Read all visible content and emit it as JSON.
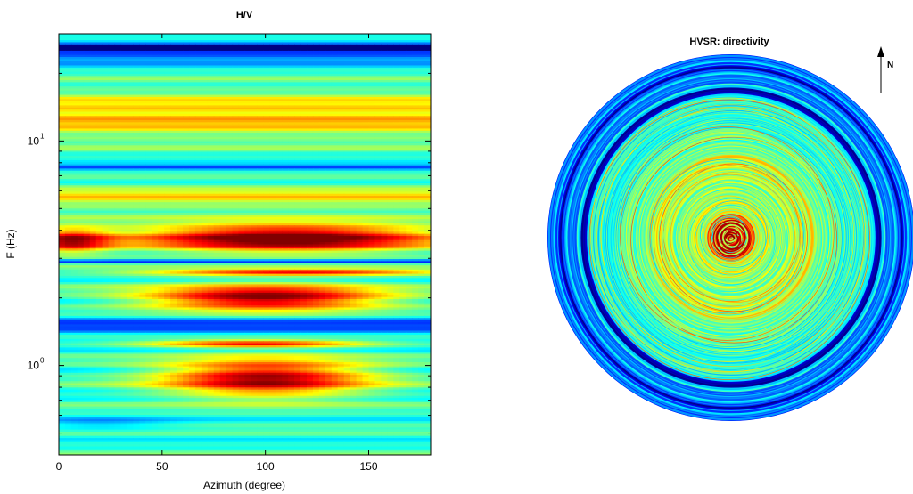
{
  "chart_data": [
    {
      "type": "heatmap",
      "title": "H/V",
      "xlabel": "Azimuth (degree)",
      "ylabel": "F (Hz)",
      "xlim": [
        0,
        180
      ],
      "ylim": [
        0.4,
        30
      ],
      "yscale": "log",
      "x_ticks": [
        {
          "value": 0,
          "label": "0"
        },
        {
          "value": 50,
          "label": "50"
        },
        {
          "value": 100,
          "label": "100"
        },
        {
          "value": 150,
          "label": "150"
        }
      ],
      "y_ticks": [
        {
          "value": 1,
          "base": "10",
          "exp": "0"
        },
        {
          "value": 10,
          "base": "10",
          "exp": "1"
        }
      ],
      "colormap": "jet",
      "features": [
        {
          "f": 26.0,
          "az_center": 90,
          "az_width": 500,
          "f_width": 0.008,
          "amp": -0.55
        },
        {
          "f": 24.5,
          "az_center": 90,
          "az_width": 500,
          "f_width": 0.03,
          "amp": -0.25
        },
        {
          "f": 13.0,
          "az_center": 90,
          "az_width": 500,
          "f_width": 0.07,
          "amp": 0.28
        },
        {
          "f": 7.6,
          "az_center": 90,
          "az_width": 500,
          "f_width": 0.008,
          "amp": -0.3
        },
        {
          "f": 5.6,
          "az_center": 90,
          "az_width": 500,
          "f_width": 0.04,
          "amp": 0.2
        },
        {
          "f": 3.7,
          "az_center": 110,
          "az_width": 55,
          "f_width": 0.045,
          "amp": 0.65
        },
        {
          "f": 3.6,
          "az_center": 5,
          "az_width": 14,
          "f_width": 0.04,
          "amp": 0.45
        },
        {
          "f": 2.9,
          "az_center": 90,
          "az_width": 500,
          "f_width": 0.006,
          "amp": -0.3
        },
        {
          "f": 2.6,
          "az_center": 115,
          "az_width": 55,
          "f_width": 0.01,
          "amp": 0.5
        },
        {
          "f": 2.0,
          "az_center": 100,
          "az_width": 42,
          "f_width": 0.04,
          "amp": 0.6
        },
        {
          "f": 1.5,
          "az_center": 90,
          "az_width": 500,
          "f_width": 0.03,
          "amp": -0.22
        },
        {
          "f": 1.25,
          "az_center": 95,
          "az_width": 38,
          "f_width": 0.012,
          "amp": 0.45
        },
        {
          "f": 0.88,
          "az_center": 100,
          "az_width": 36,
          "f_width": 0.06,
          "amp": 0.55
        },
        {
          "f": 0.55,
          "az_center": 20,
          "az_width": 25,
          "f_width": 0.02,
          "amp": -0.12
        }
      ]
    },
    {
      "type": "heatmap",
      "title": "HVSR: directivity",
      "north_label": "N",
      "colormap": "jet",
      "note": "polar rendering of the H/V matrix; ring = frequency, angle = azimuth"
    }
  ]
}
